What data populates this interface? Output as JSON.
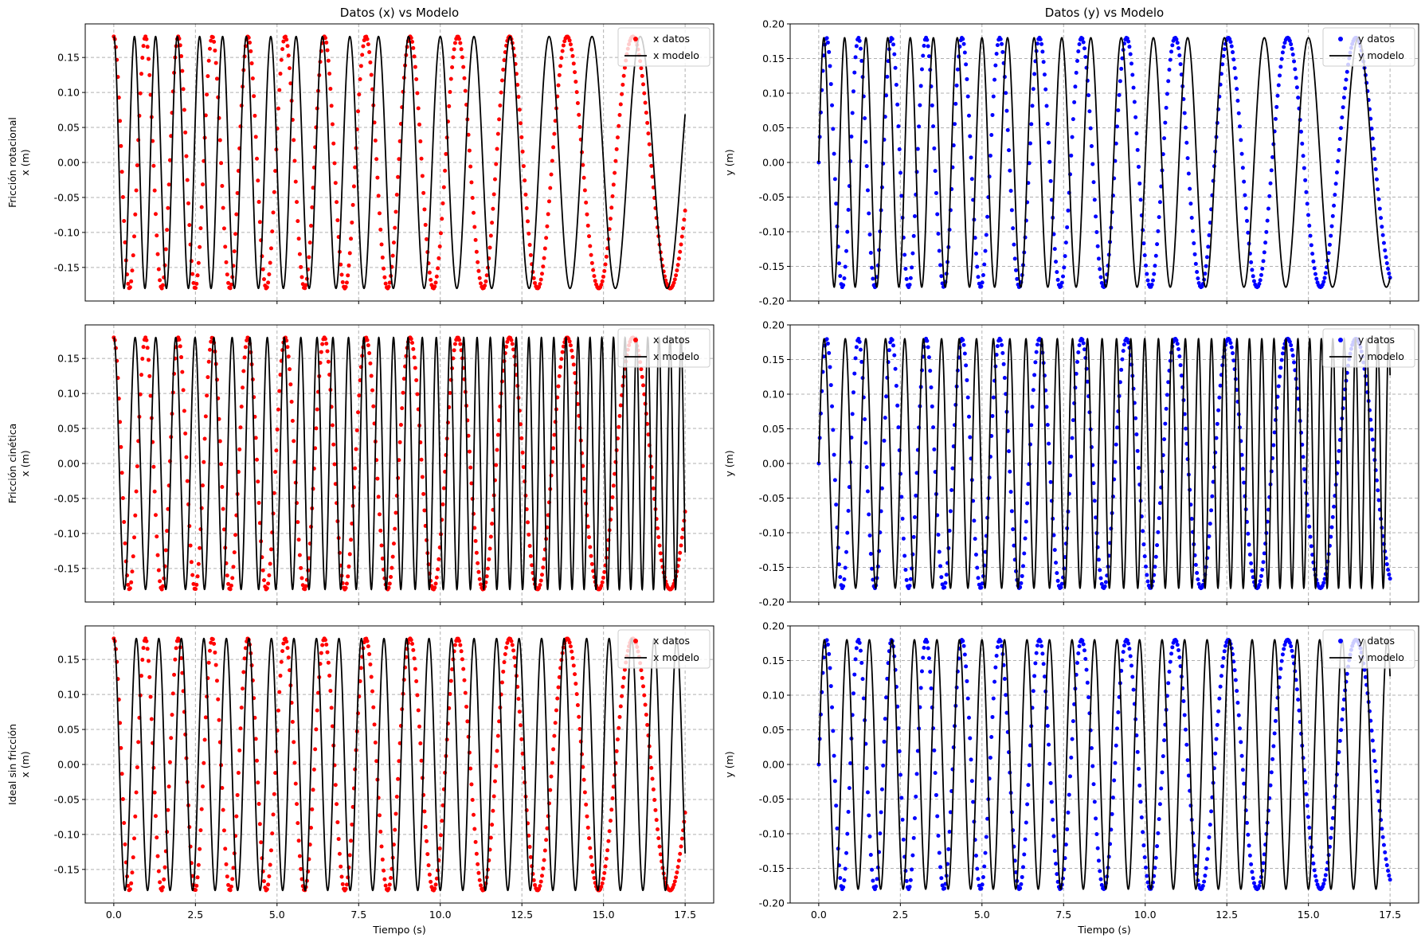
{
  "figure": {
    "col_titles": [
      "Datos (x) vs Modelo",
      "Datos (y) vs Modelo"
    ],
    "xlabel": "Tiempo (s)",
    "row_ylabels": [
      [
        "Fricción rotacional",
        "x (m)"
      ],
      [
        "Fricción cinética",
        "x (m)"
      ],
      [
        "Ideal sin fricción",
        "x (m)"
      ]
    ],
    "right_ylabel": "y (m)",
    "colors": {
      "x_data": "#ff0000",
      "y_data": "#0000ff",
      "model": "#000000",
      "grid": "#b0b0b0"
    }
  },
  "chart_data": [
    {
      "type": "line",
      "row": 0,
      "col": 0,
      "title": "Datos (x) vs Modelo",
      "ylabel": "x (m)",
      "xlim": [
        -0.875,
        18.375
      ],
      "ylim": [
        -0.198,
        0.198
      ],
      "xticks": [
        0,
        2.5,
        5,
        7.5,
        10,
        12.5,
        15,
        17.5
      ],
      "xticklabels": [
        "0.0",
        "2.5",
        "5.0",
        "7.5",
        "10.0",
        "12.5",
        "15.0",
        "17.5"
      ],
      "yticks": [
        -0.15,
        -0.1,
        -0.05,
        0.0,
        0.05,
        0.1,
        0.15
      ],
      "yticklabels": [
        "-0.15",
        "-0.10",
        "-0.05",
        "0.00",
        "0.05",
        "0.10",
        "0.15"
      ],
      "legend": "top-right",
      "grid": true,
      "series": [
        {
          "name": "x datos",
          "kind": "scatter",
          "component": "cos",
          "color": "#ff0000",
          "amplitude": 0.18,
          "x_range": [
            0,
            17.5
          ],
          "phase_zeros_s": [
            0,
            17.5
          ],
          "cycles": 11.2
        },
        {
          "name": "x modelo",
          "kind": "line",
          "component": "cos",
          "color": "#000000",
          "amplitude": 0.18,
          "x_range": [
            0,
            17.5
          ],
          "frequency_hz": [
            1.6,
            0.55
          ]
        }
      ]
    },
    {
      "type": "line",
      "row": 0,
      "col": 1,
      "title": "Datos (y) vs Modelo",
      "ylabel": "y (m)",
      "xlim": [
        -0.875,
        18.375
      ],
      "ylim": [
        -0.2,
        0.2
      ],
      "xticks": [
        0,
        2.5,
        5,
        7.5,
        10,
        12.5,
        15,
        17.5
      ],
      "xticklabels": [
        "0.0",
        "2.5",
        "5.0",
        "7.5",
        "10.0",
        "12.5",
        "15.0",
        "17.5"
      ],
      "yticks": [
        -0.2,
        -0.15,
        -0.1,
        -0.05,
        0.0,
        0.05,
        0.1,
        0.15,
        0.2
      ],
      "yticklabels": [
        "-0.20",
        "-0.15",
        "-0.10",
        "-0.05",
        "0.00",
        "0.05",
        "0.10",
        "0.15",
        "0.20"
      ],
      "legend": "top-right",
      "grid": true,
      "series": [
        {
          "name": "y datos",
          "kind": "scatter",
          "component": "sin",
          "color": "#0000ff",
          "amplitude": 0.18,
          "x_range": [
            0,
            17.5
          ],
          "cycles": 11.2
        },
        {
          "name": "y modelo",
          "kind": "line",
          "component": "sin",
          "color": "#000000",
          "amplitude": 0.18,
          "x_range": [
            0,
            17.5
          ],
          "frequency_hz": [
            1.6,
            0.55
          ]
        }
      ]
    },
    {
      "type": "line",
      "row": 1,
      "col": 0,
      "title": "",
      "ylabel": "x (m)",
      "xlim": [
        -0.875,
        18.375
      ],
      "ylim": [
        -0.198,
        0.198
      ],
      "xticks": [
        0,
        2.5,
        5,
        7.5,
        10,
        12.5,
        15,
        17.5
      ],
      "yticks": [
        -0.15,
        -0.1,
        -0.05,
        0.0,
        0.05,
        0.1,
        0.15
      ],
      "yticklabels": [
        "-0.15",
        "-0.10",
        "-0.05",
        "0.00",
        "0.05",
        "0.10",
        "0.15"
      ],
      "legend": "top-right",
      "grid": true,
      "series": [
        {
          "name": "x datos",
          "kind": "scatter",
          "component": "cos",
          "color": "#ff0000",
          "amplitude": 0.18,
          "x_range": [
            0,
            17.5
          ],
          "cycles": 11.2
        },
        {
          "name": "x modelo",
          "kind": "line",
          "component": "cos",
          "color": "#000000",
          "amplitude": 0.18,
          "x_range": [
            0,
            17.5
          ],
          "frequency_hz": [
            1.5,
            3.0
          ]
        }
      ]
    },
    {
      "type": "line",
      "row": 1,
      "col": 1,
      "title": "",
      "ylabel": "y (m)",
      "xlim": [
        -0.875,
        18.375
      ],
      "ylim": [
        -0.2,
        0.2
      ],
      "xticks": [
        0,
        2.5,
        5,
        7.5,
        10,
        12.5,
        15,
        17.5
      ],
      "yticks": [
        -0.2,
        -0.15,
        -0.1,
        -0.05,
        0.0,
        0.05,
        0.1,
        0.15,
        0.2
      ],
      "yticklabels": [
        "-0.20",
        "-0.15",
        "-0.10",
        "-0.05",
        "0.00",
        "0.05",
        "0.10",
        "0.15",
        "0.20"
      ],
      "legend": "top-right",
      "grid": true,
      "series": [
        {
          "name": "y datos",
          "kind": "scatter",
          "component": "sin",
          "color": "#0000ff",
          "amplitude": 0.18,
          "x_range": [
            0,
            17.5
          ],
          "cycles": 11.2
        },
        {
          "name": "y modelo",
          "kind": "line",
          "component": "sin",
          "color": "#000000",
          "amplitude": 0.18,
          "x_range": [
            0,
            17.5
          ],
          "frequency_hz": [
            1.5,
            3.0
          ]
        }
      ]
    },
    {
      "type": "line",
      "row": 2,
      "col": 0,
      "title": "",
      "ylabel": "x (m)",
      "xlabel": "Tiempo (s)",
      "xlim": [
        -0.875,
        18.375
      ],
      "ylim": [
        -0.198,
        0.198
      ],
      "xticks": [
        0,
        2.5,
        5,
        7.5,
        10,
        12.5,
        15,
        17.5
      ],
      "xticklabels": [
        "0.0",
        "2.5",
        "5.0",
        "7.5",
        "10.0",
        "12.5",
        "15.0",
        "17.5"
      ],
      "yticks": [
        -0.15,
        -0.1,
        -0.05,
        0.0,
        0.05,
        0.1,
        0.15
      ],
      "yticklabels": [
        "-0.15",
        "-0.10",
        "-0.05",
        "0.00",
        "0.05",
        "0.10",
        "0.15"
      ],
      "legend": "top-right",
      "grid": true,
      "series": [
        {
          "name": "x datos",
          "kind": "scatter",
          "component": "cos",
          "color": "#ff0000",
          "amplitude": 0.18,
          "x_range": [
            0,
            17.5
          ],
          "cycles": 11.2
        },
        {
          "name": "x modelo",
          "kind": "line",
          "component": "cos",
          "color": "#000000",
          "amplitude": 0.18,
          "x_range": [
            0,
            17.5
          ],
          "frequency_hz": [
            1.45,
            1.45
          ]
        }
      ]
    },
    {
      "type": "line",
      "row": 2,
      "col": 1,
      "title": "",
      "ylabel": "y (m)",
      "xlabel": "Tiempo (s)",
      "xlim": [
        -0.875,
        18.375
      ],
      "ylim": [
        -0.2,
        0.2
      ],
      "xticks": [
        0,
        2.5,
        5,
        7.5,
        10,
        12.5,
        15,
        17.5
      ],
      "xticklabels": [
        "0.0",
        "2.5",
        "5.0",
        "7.5",
        "10.0",
        "12.5",
        "15.0",
        "17.5"
      ],
      "yticks": [
        -0.2,
        -0.15,
        -0.1,
        -0.05,
        0.0,
        0.05,
        0.1,
        0.15,
        0.2
      ],
      "yticklabels": [
        "-0.20",
        "-0.15",
        "-0.10",
        "-0.05",
        "0.00",
        "0.05",
        "0.10",
        "0.15",
        "0.20"
      ],
      "legend": "top-right",
      "grid": true,
      "series": [
        {
          "name": "y datos",
          "kind": "scatter",
          "component": "sin",
          "color": "#0000ff",
          "amplitude": 0.18,
          "x_range": [
            0,
            17.5
          ],
          "cycles": 11.2
        },
        {
          "name": "y modelo",
          "kind": "line",
          "component": "sin",
          "color": "#000000",
          "amplitude": 0.18,
          "x_range": [
            0,
            17.5
          ],
          "frequency_hz": [
            1.45,
            1.45
          ]
        }
      ]
    }
  ]
}
